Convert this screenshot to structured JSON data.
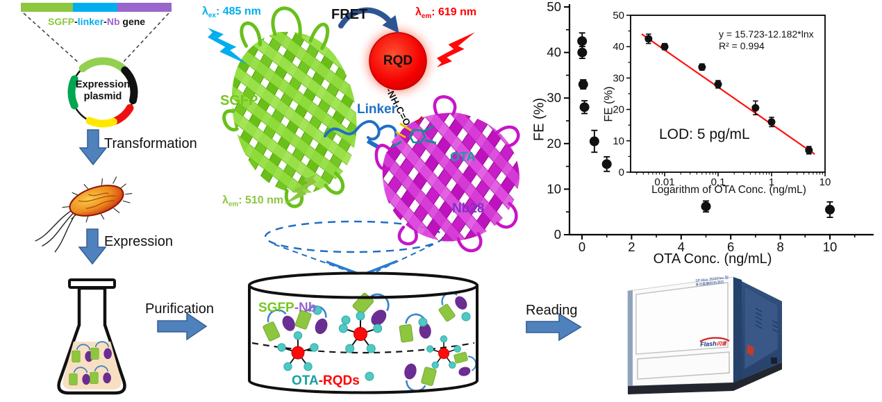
{
  "palette": {
    "sgfp_green": "#76C61E",
    "gene_green": "#8DC63F",
    "gene_blue": "#00AEEF",
    "gene_purple": "#9966CC",
    "linker_blue": "#1E6FC5",
    "nb_magenta": "#BF10BF",
    "nb_label": "#8031C9",
    "ota_teal": "#17A0A0",
    "rqd_red": "#FF0000",
    "em_green": "#8CC63F",
    "arrow_blue": "#4F81BD",
    "fret_arrow_blue": "#2E5593",
    "fit_line_red": "#FF1111",
    "teal_dot": "#4EC9C4",
    "purple_oval": "#6A2D91",
    "flask_liquid": "#F8DFC2"
  },
  "construct": {
    "label": {
      "sgfp": "SGFP",
      "dash1": "-",
      "linker": "linker",
      "dash2": "-",
      "nb": "Nb",
      "gene": " gene"
    }
  },
  "plasmid": {
    "label": "Expression plasmid"
  },
  "workflow": {
    "transformation": "Transformation",
    "expression": "Expression",
    "purification": "Purification",
    "reading": "Reading"
  },
  "fret": {
    "title": "FRET",
    "excitation": {
      "sym": "λ",
      "sub": "ex",
      "rest": ": 485 nm"
    },
    "emission_rqd": {
      "sym": "λ",
      "sub": "em",
      "rest": ": 619 nm"
    },
    "emission_sgfp": {
      "sym": "λ",
      "sub": "em",
      "rest": ": 510 nm"
    },
    "donor": "SGFP",
    "acceptor": "RQD",
    "linker": "Linker",
    "bond": "-NH-C=O",
    "analyte": "OTA",
    "nanobody": "Nb28"
  },
  "mixture": {
    "sgfp": "SGFP",
    "nb": "-Nb",
    "ota": "OTA",
    "rqds": "-RQDs"
  },
  "instrument": {
    "model_line1": "SP-Max 3500Flex 型",
    "model_line2": "多功能酶标检测仪",
    "logo": "Flash",
    "logo_suffix": "闪谱"
  },
  "chart_data": [
    {
      "type": "scatter",
      "role": "main-dose-response",
      "title": "",
      "xlabel": "OTA Conc. (ng/mL)",
      "ylabel": "FE (%)",
      "xlim": [
        -0.6,
        11.8
      ],
      "ylim": [
        0,
        50
      ],
      "xticks": [
        0,
        2,
        4,
        6,
        8,
        10
      ],
      "yticks": [
        0,
        10,
        20,
        30,
        40,
        50
      ],
      "grid": false,
      "marker": "filled-circle",
      "marker_color": "#111111",
      "points": [
        {
          "x": 0.005,
          "y": 42.5,
          "err": 1.8
        },
        {
          "x": 0.01,
          "y": 40.0,
          "err": 1.3
        },
        {
          "x": 0.05,
          "y": 33.0,
          "err": 1.0
        },
        {
          "x": 0.1,
          "y": 28.0,
          "err": 1.4
        },
        {
          "x": 0.5,
          "y": 20.5,
          "err": 2.4
        },
        {
          "x": 1,
          "y": 15.5,
          "err": 1.6
        },
        {
          "x": 5,
          "y": 6.2,
          "err": 1.2
        },
        {
          "x": 10,
          "y": 5.5,
          "err": 1.7
        }
      ]
    },
    {
      "type": "scatter",
      "role": "inset-calibration",
      "title": "",
      "xlabel": "Logarithm of OTA Conc. (ng/mL)",
      "ylabel": "FE (%)",
      "xscale": "log",
      "xlim": [
        0.0023,
        10
      ],
      "ylim": [
        0,
        50
      ],
      "xticks": [
        0.01,
        0.1,
        1,
        10
      ],
      "yticks": [
        0,
        10,
        20,
        30,
        40,
        50
      ],
      "grid": false,
      "marker": "filled-circle",
      "marker_color": "#111111",
      "points": [
        {
          "x": 0.005,
          "y": 42.5,
          "err": 1.5
        },
        {
          "x": 0.01,
          "y": 40.0,
          "err": 1.0
        },
        {
          "x": 0.05,
          "y": 33.5,
          "err": 1.0
        },
        {
          "x": 0.1,
          "y": 28.0,
          "err": 1.2
        },
        {
          "x": 0.5,
          "y": 20.5,
          "err": 2.2
        },
        {
          "x": 1,
          "y": 16.0,
          "err": 1.5
        },
        {
          "x": 5,
          "y": 7.0,
          "err": 1.2
        }
      ],
      "fit": {
        "equation": "y = 15.723-12.182*lnx",
        "r2": "R² = 0.994",
        "line_color": "#FF1111"
      },
      "annotation": "LOD: 5 pg/mL",
      "legend_position": "none"
    }
  ]
}
